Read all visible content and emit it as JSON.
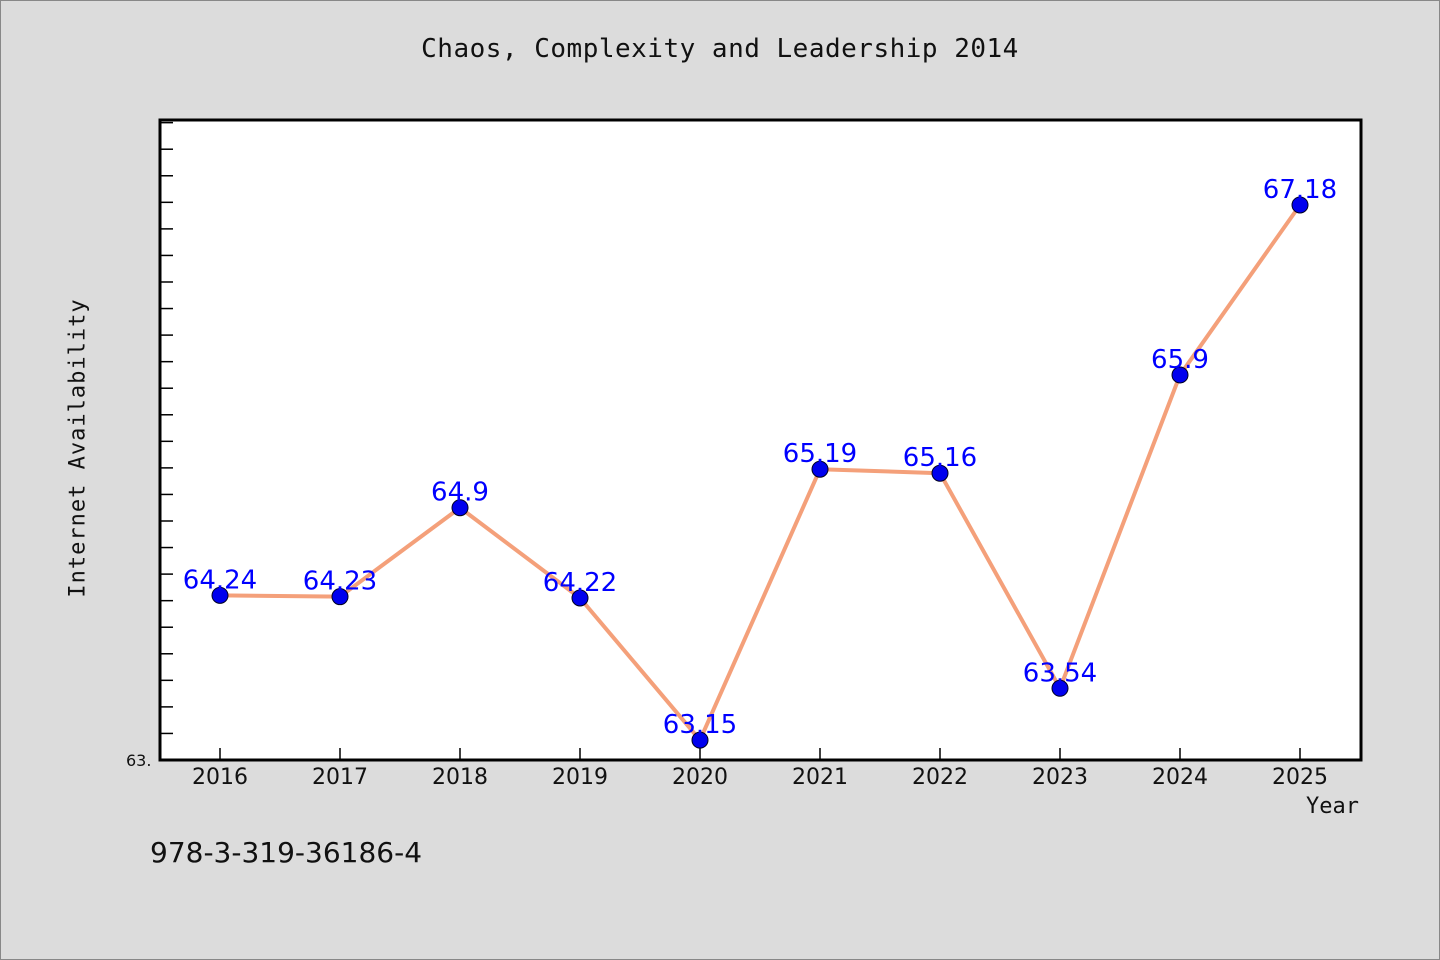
{
  "chart_data": {
    "type": "line",
    "title": "Chaos, Complexity and Leadership 2014",
    "xlabel": "Year",
    "ylabel": "Internet Availability",
    "categories": [
      "2016",
      "2017",
      "2018",
      "2019",
      "2020",
      "2021",
      "2022",
      "2023",
      "2024",
      "2025"
    ],
    "series": [
      {
        "values": [
          64.24,
          64.23,
          64.9,
          64.22,
          63.15,
          65.19,
          65.16,
          63.54,
          65.9,
          67.18
        ],
        "line_color": "#f4a07a",
        "marker_color": "#0000ee",
        "label_color": "#0000ff"
      }
    ],
    "data_labels": [
      "64.24",
      "64.23",
      "64.9",
      "64.22",
      "63.15",
      "65.19",
      "65.16",
      "63.54",
      "65.9",
      "67.18"
    ],
    "y_tick_label": "63.",
    "ylim": [
      63.0,
      67.82
    ],
    "grid": false,
    "legend": "none"
  },
  "footer": {
    "isbn": "978-3-319-36186-4"
  }
}
